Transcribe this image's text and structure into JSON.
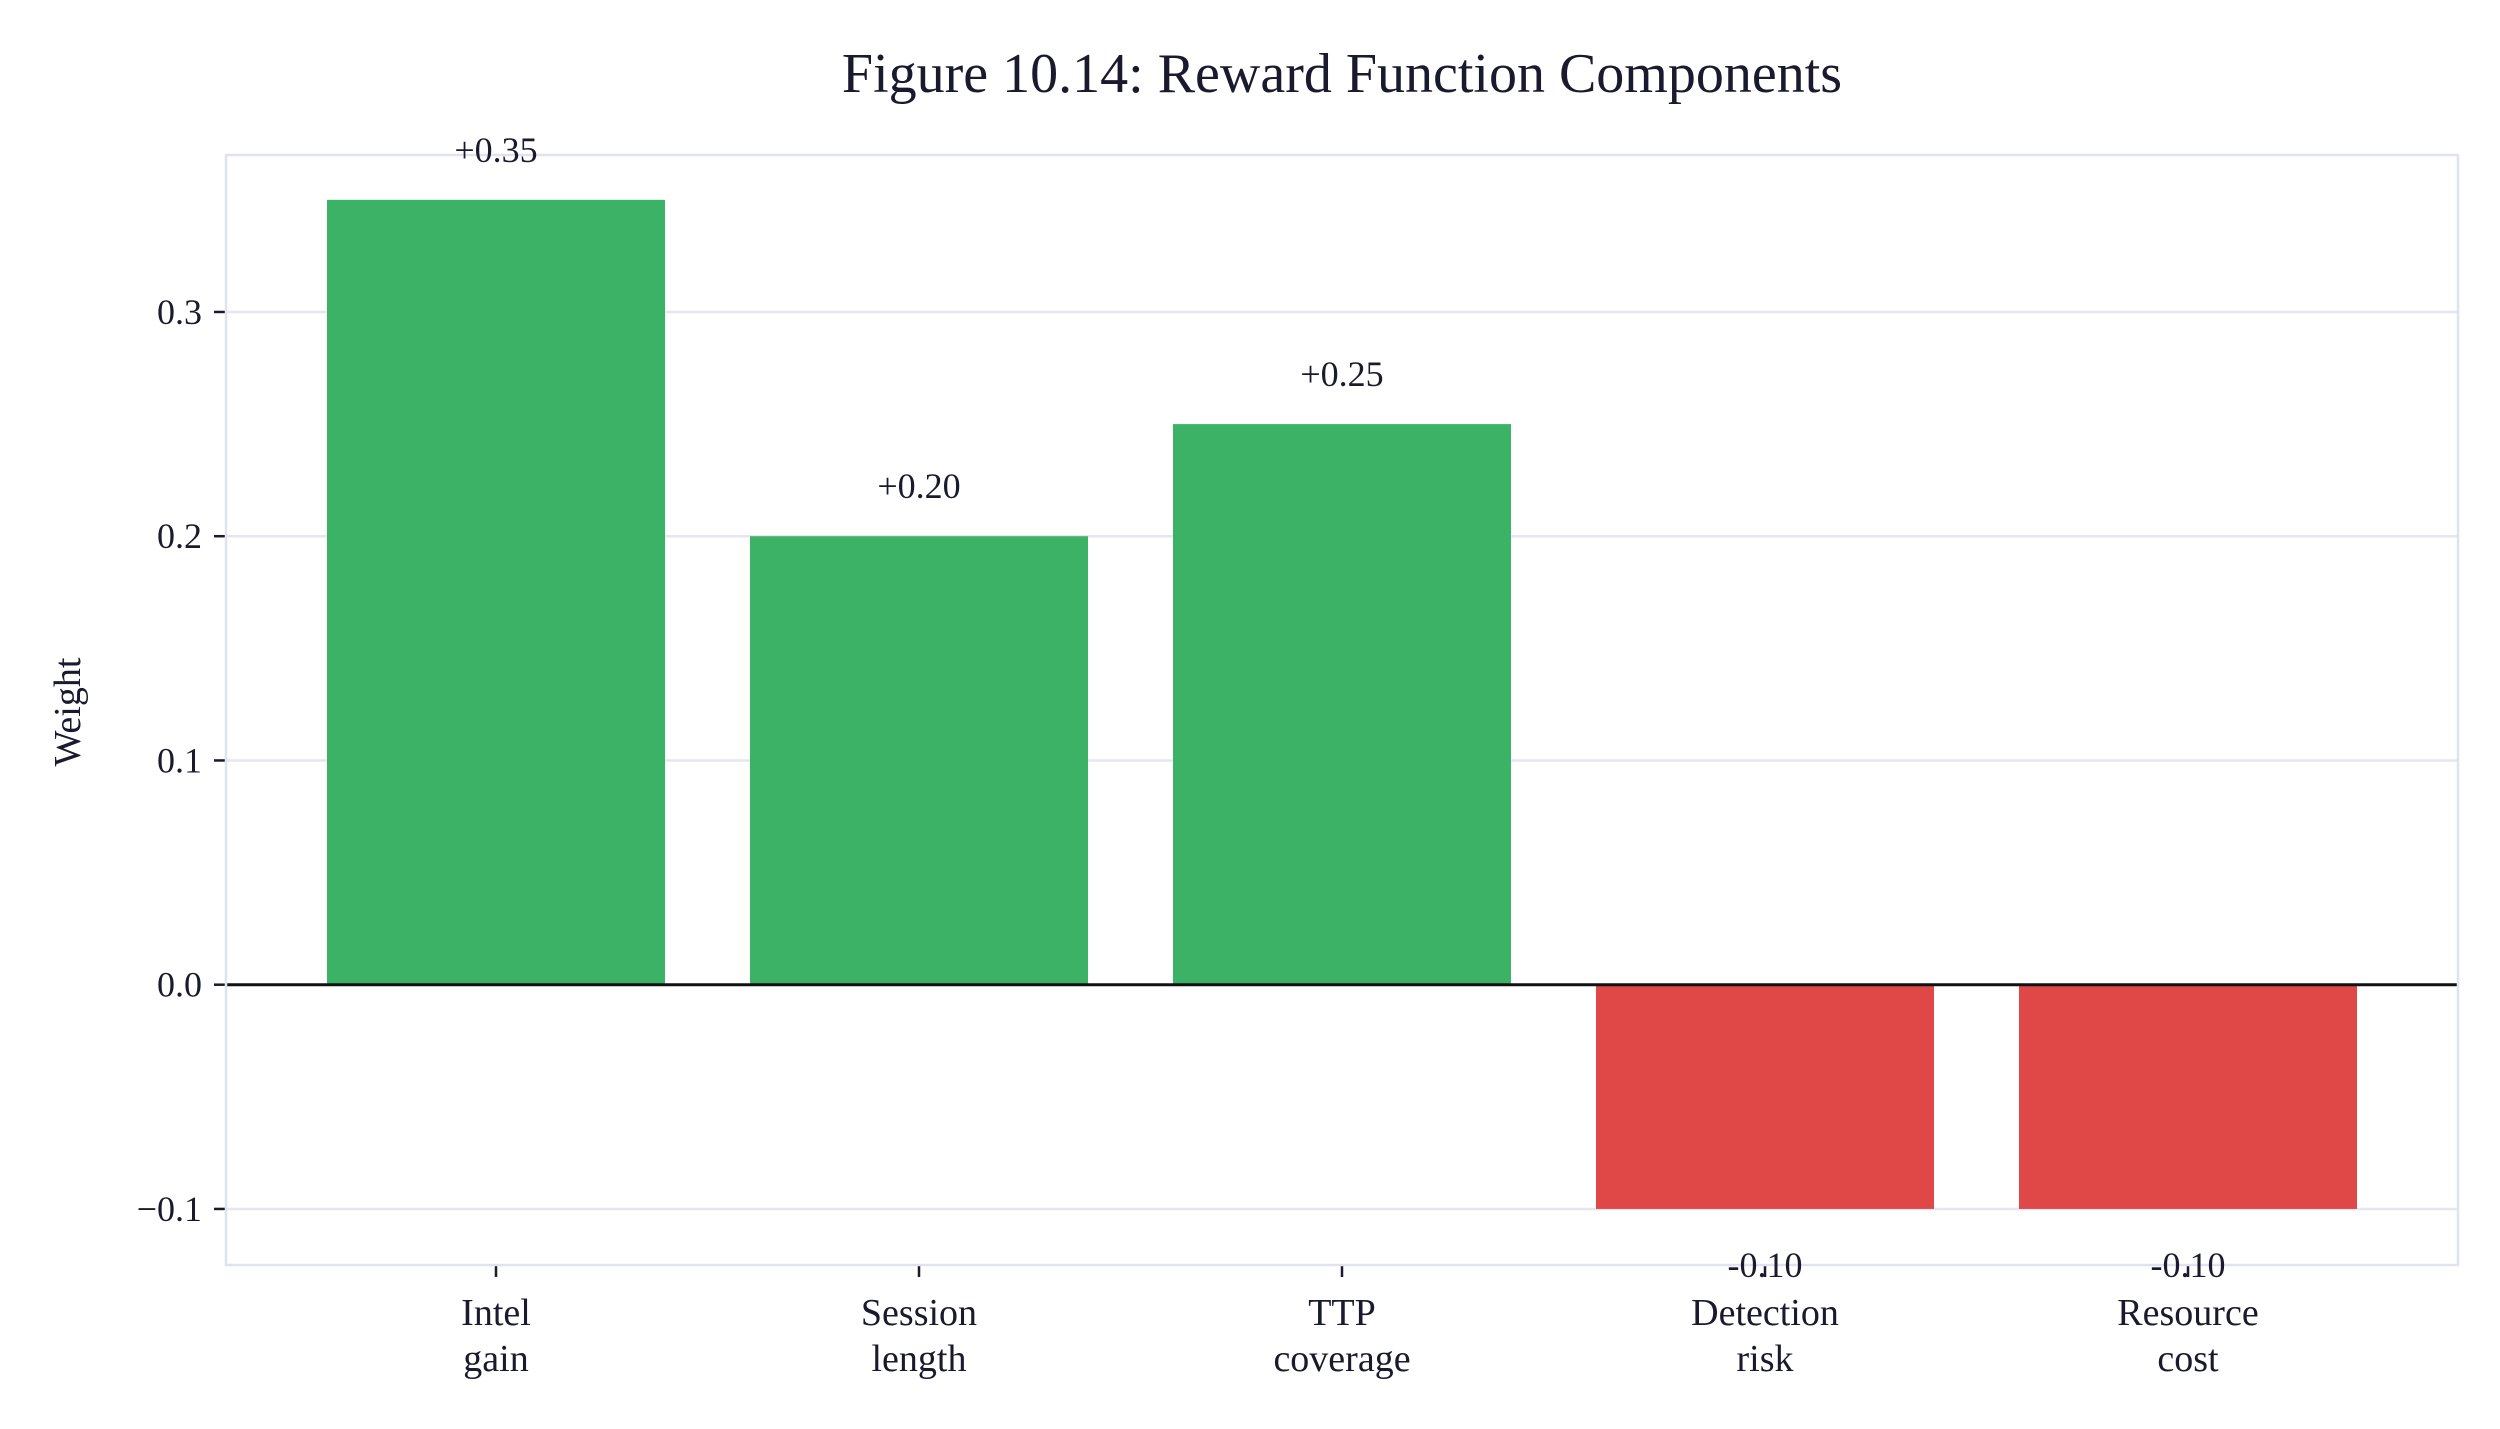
{
  "chart_data": {
    "type": "bar",
    "title": "Figure 10.14: Reward Function Components",
    "xlabel": "",
    "ylabel": "Weight",
    "ylim": [
      -0.125,
      0.37
    ],
    "yticks": [
      -0.1,
      0.0,
      0.1,
      0.2,
      0.3
    ],
    "ytick_labels": [
      "−0.1",
      "0.0",
      "0.1",
      "0.2",
      "0.3"
    ],
    "grid": true,
    "categories": [
      [
        "Intel",
        "gain"
      ],
      [
        "Session",
        "length"
      ],
      [
        "TTP",
        "coverage"
      ],
      [
        "Detection",
        "risk"
      ],
      [
        "Resource",
        "cost"
      ]
    ],
    "values": [
      0.35,
      0.2,
      0.25,
      -0.1,
      -0.1
    ],
    "data_labels": [
      "+0.35",
      "+0.20",
      "+0.25",
      "-0.10",
      "-0.10"
    ],
    "colors": {
      "positive": "#3cb266",
      "negative": "#e04848"
    }
  }
}
